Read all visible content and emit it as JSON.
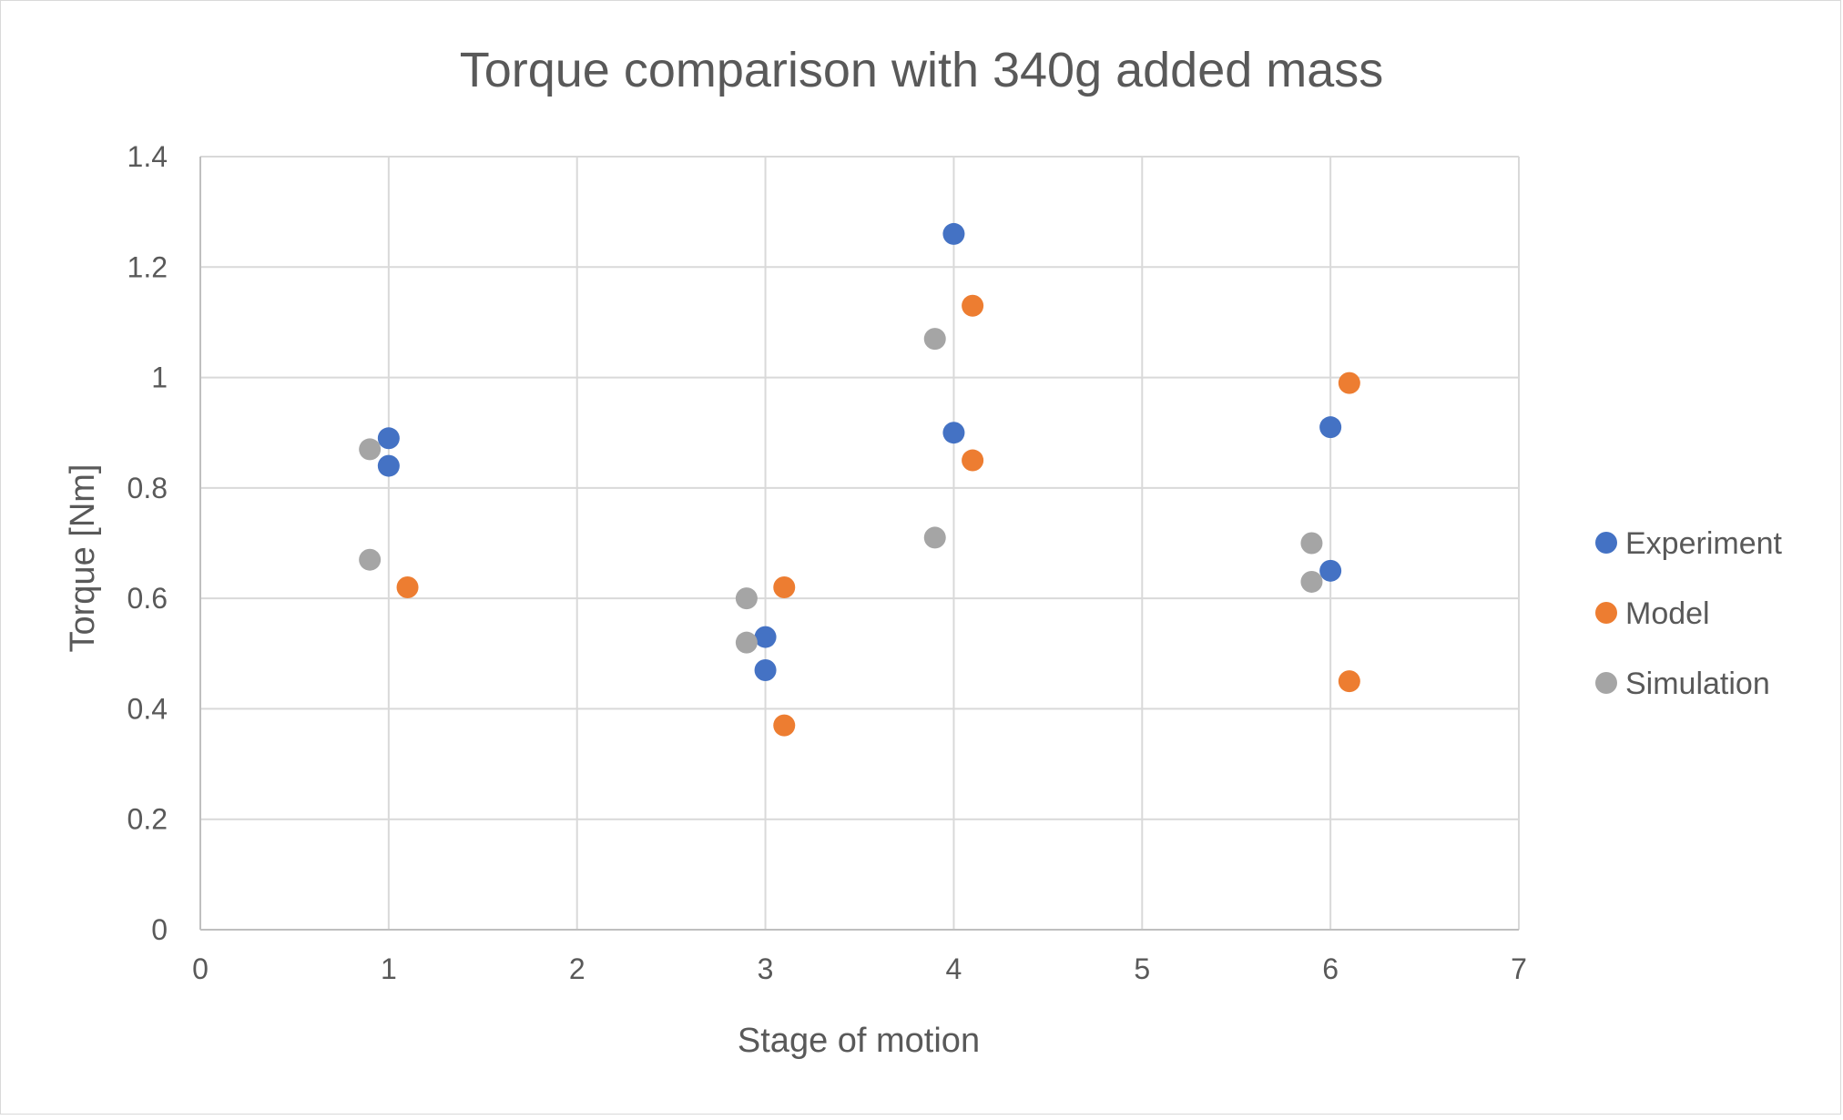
{
  "chart_data": {
    "type": "scatter",
    "title": "Torque comparison with 340g added mass",
    "xlabel": "Stage of motion",
    "ylabel": "Torque [Nm]",
    "xlim": [
      0,
      7
    ],
    "ylim": [
      0,
      1.4
    ],
    "x_ticks": [
      "0",
      "1",
      "2",
      "3",
      "4",
      "5",
      "6",
      "7"
    ],
    "y_ticks": [
      "0",
      "0.2",
      "0.4",
      "0.6",
      "0.8",
      "1",
      "1.2",
      "1.4"
    ],
    "grid": true,
    "legend_position": "right",
    "series": [
      {
        "name": "Experiment",
        "color": "#4472C4",
        "points": [
          {
            "x": 1,
            "y": 0.89
          },
          {
            "x": 1,
            "y": 0.84
          },
          {
            "x": 3,
            "y": 0.53
          },
          {
            "x": 3,
            "y": 0.47
          },
          {
            "x": 4,
            "y": 1.26
          },
          {
            "x": 4,
            "y": 0.9
          },
          {
            "x": 6,
            "y": 0.91
          },
          {
            "x": 6,
            "y": 0.65
          }
        ]
      },
      {
        "name": "Model",
        "color": "#ED7D31",
        "points": [
          {
            "x": 1.1,
            "y": 0.62
          },
          {
            "x": 3.1,
            "y": 0.62
          },
          {
            "x": 3.1,
            "y": 0.37
          },
          {
            "x": 4.1,
            "y": 1.13
          },
          {
            "x": 4.1,
            "y": 0.85
          },
          {
            "x": 6.1,
            "y": 0.99
          },
          {
            "x": 6.1,
            "y": 0.45
          }
        ]
      },
      {
        "name": "Simulation",
        "color": "#A5A5A5",
        "points": [
          {
            "x": 0.9,
            "y": 0.87
          },
          {
            "x": 0.9,
            "y": 0.67
          },
          {
            "x": 2.9,
            "y": 0.6
          },
          {
            "x": 2.9,
            "y": 0.52
          },
          {
            "x": 3.9,
            "y": 1.07
          },
          {
            "x": 3.9,
            "y": 0.71
          },
          {
            "x": 5.9,
            "y": 0.7
          },
          {
            "x": 5.9,
            "y": 0.63
          }
        ]
      }
    ]
  }
}
